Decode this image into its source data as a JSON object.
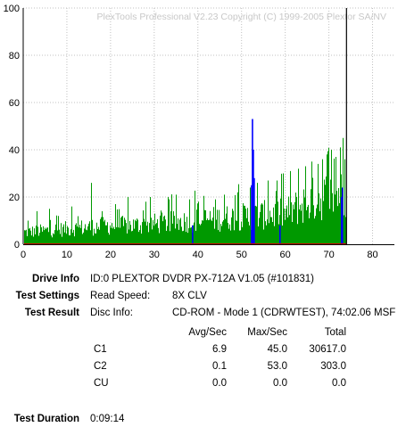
{
  "chart_data": {
    "type": "bar",
    "title": "PlexTools Professional V2.23 Copyright (C) 1999-2005 Plextor SA/NV",
    "xlim": [
      0,
      85
    ],
    "ylim": [
      0,
      100
    ],
    "x_ticks": [
      0,
      10,
      20,
      30,
      40,
      50,
      60,
      70,
      80
    ],
    "y_ticks": [
      0,
      20,
      40,
      60,
      80,
      100
    ],
    "grid": true,
    "series": [
      {
        "name": "C1",
        "color": "#009900",
        "x_range": [
          0,
          74.03
        ],
        "envelope": [
          [
            0,
            7
          ],
          [
            5,
            8
          ],
          [
            10,
            9
          ],
          [
            15,
            10
          ],
          [
            20,
            11
          ],
          [
            25,
            11
          ],
          [
            30,
            12
          ],
          [
            35,
            13
          ],
          [
            40,
            14
          ],
          [
            45,
            15
          ],
          [
            50,
            16
          ],
          [
            55,
            17
          ],
          [
            60,
            18
          ],
          [
            63,
            22
          ],
          [
            66,
            26
          ],
          [
            69,
            28
          ],
          [
            72,
            30
          ],
          [
            74.03,
            28
          ]
        ],
        "spikes": [
          [
            1,
            10
          ],
          [
            3,
            14
          ],
          [
            6,
            15
          ],
          [
            8,
            12
          ],
          [
            11,
            16
          ],
          [
            15.5,
            26
          ],
          [
            18,
            14
          ],
          [
            21,
            17
          ],
          [
            24,
            20
          ],
          [
            28,
            18
          ],
          [
            33,
            20
          ],
          [
            35,
            21
          ],
          [
            38,
            19
          ],
          [
            40,
            18
          ],
          [
            44,
            19
          ],
          [
            46,
            21
          ],
          [
            49,
            22
          ],
          [
            52,
            24
          ],
          [
            53.5,
            26
          ],
          [
            56,
            27
          ],
          [
            58,
            27
          ],
          [
            59.5,
            30
          ],
          [
            61,
            31
          ],
          [
            63,
            32
          ],
          [
            64.5,
            33
          ],
          [
            66,
            35
          ],
          [
            67.5,
            34
          ],
          [
            68.5,
            36
          ],
          [
            69.5,
            38
          ],
          [
            70.5,
            40
          ],
          [
            71.5,
            37
          ],
          [
            72.5,
            41
          ],
          [
            73.2,
            45
          ],
          [
            73.6,
            36
          ]
        ]
      },
      {
        "name": "C2",
        "color": "#0000ff",
        "bars": [
          [
            38.8,
            8
          ],
          [
            52.3,
            25
          ],
          [
            52.5,
            53
          ],
          [
            52.7,
            40
          ],
          [
            52.9,
            28
          ],
          [
            58.8,
            8
          ],
          [
            72.9,
            20
          ],
          [
            73.1,
            24
          ]
        ]
      }
    ],
    "markers": [
      {
        "name": "disc-end",
        "x": 74.03,
        "color": "#000000"
      }
    ]
  },
  "info": {
    "drive_info_label": "Drive Info",
    "drive_info_value": "ID:0 PLEXTOR DVDR PX-712A V1.05 (#101831)",
    "test_settings_label": "Test Settings",
    "read_speed_label": "Read Speed:",
    "read_speed_value": "8X CLV",
    "test_result_label": "Test Result",
    "disc_info_label": "Disc Info:",
    "disc_info_value": "CD-ROM - Mode 1 (CDRWTEST), 74:02.06 MSF",
    "table_headers": [
      "Avg/Sec",
      "Max/Sec",
      "Total"
    ],
    "rows": [
      {
        "name": "C1",
        "avg": "6.9",
        "max": "45.0",
        "total": "30617.0"
      },
      {
        "name": "C2",
        "avg": "0.1",
        "max": "53.0",
        "total": "303.0"
      },
      {
        "name": "CU",
        "avg": "0.0",
        "max": "0.0",
        "total": "0.0"
      }
    ],
    "test_duration_label": "Test Duration",
    "test_duration_value": "0:09:14"
  }
}
